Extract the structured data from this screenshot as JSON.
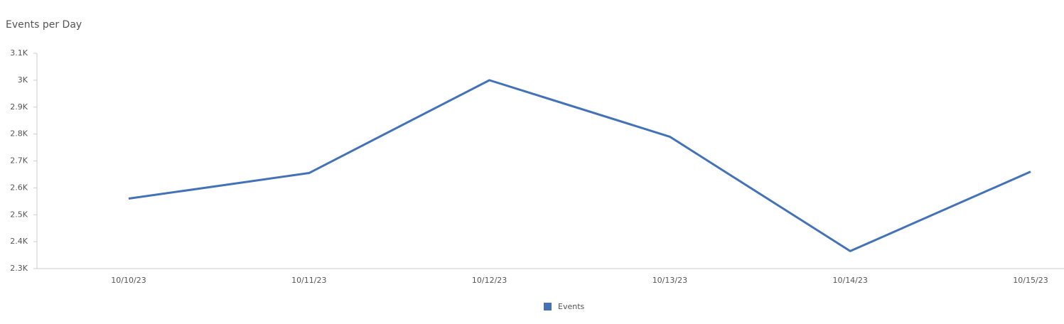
{
  "chart_data": {
    "type": "line",
    "title": "Events per Day",
    "categories": [
      "10/10/23",
      "10/11/23",
      "10/12/23",
      "10/13/23",
      "10/14/23",
      "10/15/23"
    ],
    "series": [
      {
        "name": "Events",
        "color": "#4472b8",
        "values": [
          2560,
          2655,
          3000,
          2790,
          2365,
          2660
        ]
      }
    ],
    "ylim": [
      2300,
      3100
    ],
    "yticks": [
      {
        "value": 2300,
        "label": "2.3K"
      },
      {
        "value": 2400,
        "label": "2.4K"
      },
      {
        "value": 2500,
        "label": "2.5K"
      },
      {
        "value": 2600,
        "label": "2.6K"
      },
      {
        "value": 2700,
        "label": "2.7K"
      },
      {
        "value": 2800,
        "label": "2.8K"
      },
      {
        "value": 2900,
        "label": "2.9K"
      },
      {
        "value": 3000,
        "label": "3K"
      },
      {
        "value": 3100,
        "label": "3.1K"
      }
    ],
    "grid": false,
    "legend": "bottom"
  }
}
